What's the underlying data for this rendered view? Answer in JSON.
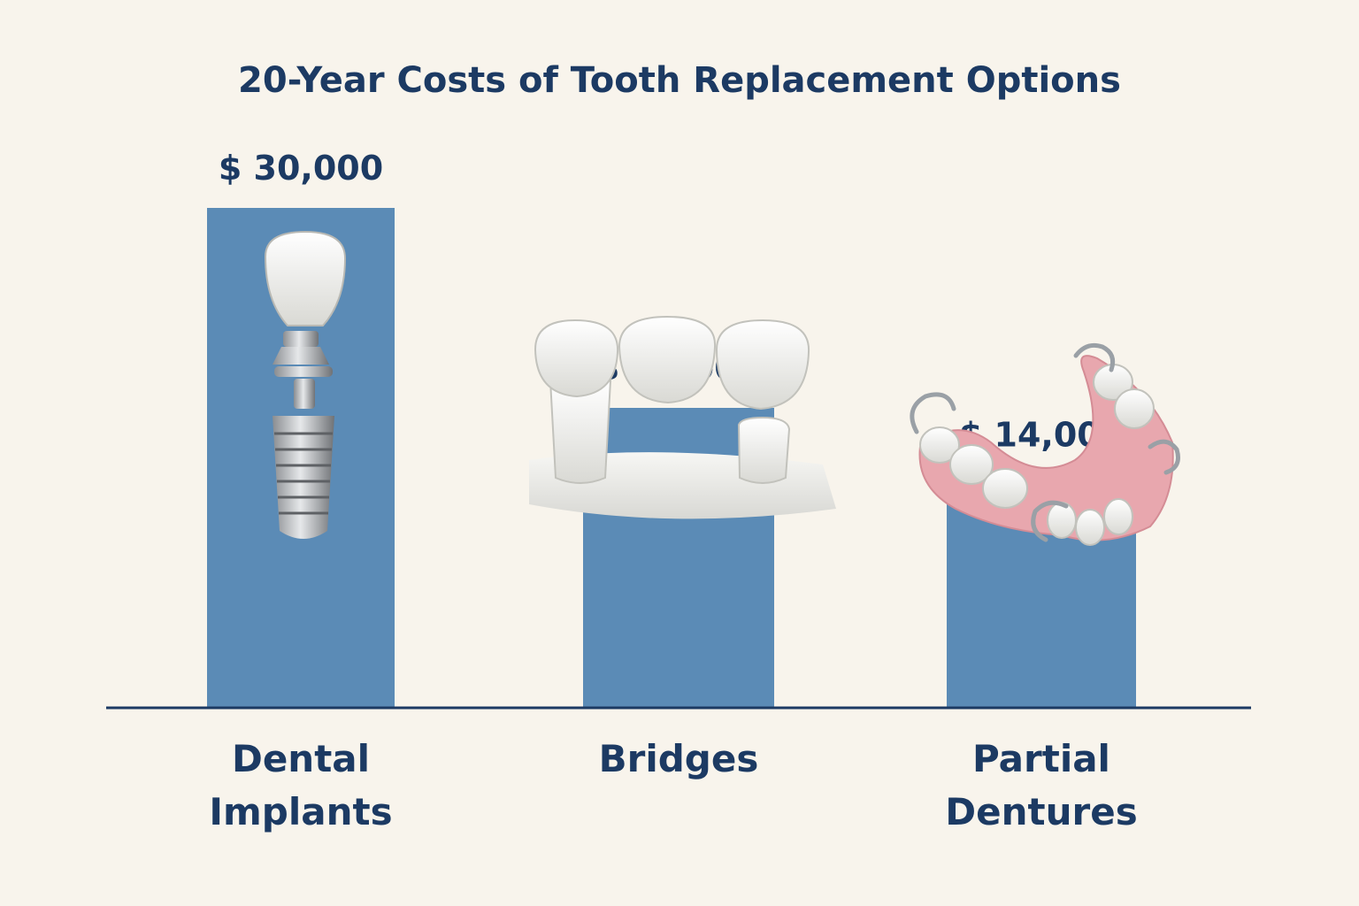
{
  "chart_data": {
    "type": "bar",
    "title": "20-Year Costs of Tooth Replacement Options",
    "categories": [
      [
        "Dental",
        "Implants"
      ],
      [
        "Bridges"
      ],
      [
        "Partial",
        "Dentures"
      ]
    ],
    "values": [
      30000,
      18000,
      14000
    ],
    "value_labels": [
      "$ 30,000",
      "$ 18,000",
      "$ 14,000"
    ],
    "icons": [
      "dental-implant-icon",
      "dental-bridge-icon",
      "partial-denture-icon"
    ],
    "ylim": [
      0,
      30000
    ],
    "grid": false,
    "colors": {
      "bar": "#5b8bb6",
      "text": "#1c3a63",
      "axis": "#1c3a63",
      "background": "#f8f4ec"
    }
  }
}
